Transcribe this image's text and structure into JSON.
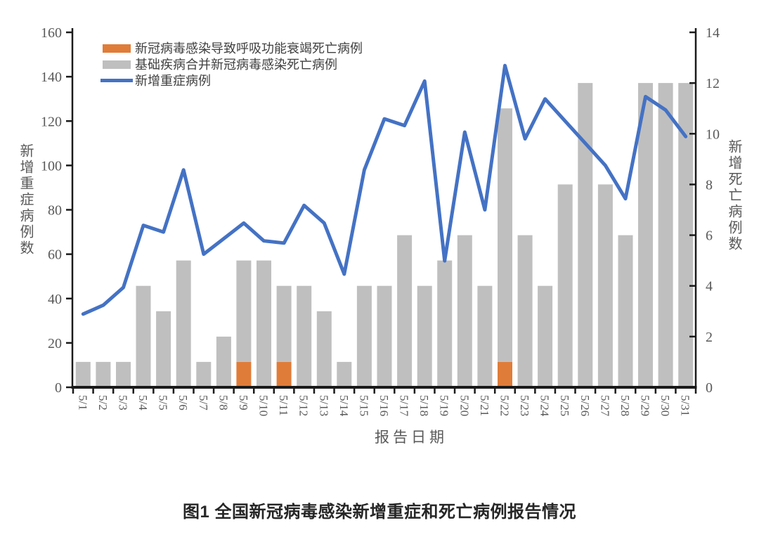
{
  "figure": {
    "caption": "图1 全国新冠病毒感染新增重症和死亡病例报告情况"
  },
  "colors": {
    "orange_bar": "#E07C39",
    "gray_bar": "#BFBFBF",
    "blue_line": "#4472C4",
    "axis_line": "#1a1a1a",
    "axis_text": "#595959"
  },
  "chart_data": {
    "type": "combo",
    "title": "",
    "xlabel": "报告日期",
    "grid": false,
    "legend_position": "top-left",
    "categories": [
      "5/1",
      "5/2",
      "5/3",
      "5/4",
      "5/5",
      "5/6",
      "5/7",
      "5/8",
      "5/9",
      "5/10",
      "5/11",
      "5/12",
      "5/13",
      "5/14",
      "5/15",
      "5/16",
      "5/17",
      "5/18",
      "5/19",
      "5/20",
      "5/21",
      "5/22",
      "5/23",
      "5/24",
      "5/25",
      "5/26",
      "5/27",
      "5/28",
      "5/29",
      "5/30",
      "5/31"
    ],
    "series": [
      {
        "name": "新冠病毒感染导致呼吸功能衰竭死亡病例",
        "type": "bar",
        "stack": "deaths",
        "axis": "right",
        "color": "#E07C39",
        "values": [
          0,
          0,
          0,
          0,
          0,
          0,
          0,
          0,
          1,
          0,
          1,
          0,
          0,
          0,
          0,
          0,
          0,
          0,
          0,
          0,
          0,
          1,
          0,
          0,
          0,
          0,
          0,
          0,
          0,
          0,
          0
        ]
      },
      {
        "name": "基础疾病合并新冠病毒感染死亡病例",
        "type": "bar",
        "stack": "deaths",
        "axis": "right",
        "color": "#BFBFBF",
        "values": [
          1,
          1,
          1,
          4,
          3,
          5,
          1,
          2,
          4,
          5,
          3,
          4,
          3,
          1,
          4,
          4,
          6,
          4,
          5,
          6,
          4,
          10,
          6,
          4,
          8,
          12,
          8,
          6,
          12,
          12,
          12
        ]
      },
      {
        "name": "新增重症病例",
        "type": "line",
        "axis": "left",
        "color": "#4472C4",
        "values": [
          33,
          37,
          45,
          73,
          70,
          98,
          60,
          67,
          74,
          66,
          65,
          82,
          74,
          51,
          98,
          121,
          118,
          138,
          57,
          115,
          80,
          145,
          112,
          130,
          120,
          110,
          100,
          85,
          131,
          125,
          113
        ]
      }
    ],
    "left_axis": {
      "label": "新增重症病例数",
      "min": 0,
      "max": 160,
      "step": 20,
      "ticks": [
        0,
        20,
        40,
        60,
        80,
        100,
        120,
        140,
        160
      ]
    },
    "right_axis": {
      "label": "新增死亡病例数",
      "min": 0,
      "max": 14,
      "step": 2,
      "ticks": [
        0,
        2,
        4,
        6,
        8,
        10,
        12,
        14
      ]
    }
  }
}
